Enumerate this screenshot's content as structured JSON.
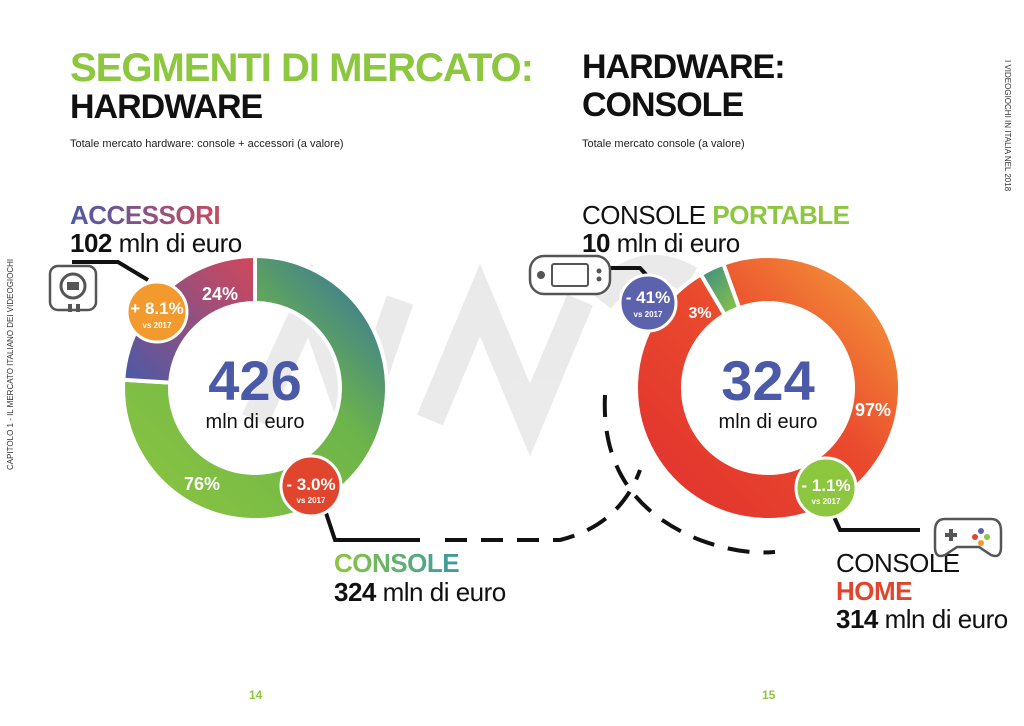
{
  "left": {
    "title_line1": "SEGMENTI DI MERCATO:",
    "title_line2": "HARDWARE",
    "subtitle": "Totale mercato hardware: console + accessori (a valore)",
    "accessori_label": "ACCESSORI",
    "accessori_value_num": "102",
    "accessori_value_unit": " mln di euro",
    "console_label": "CONSOLE",
    "console_value_num": "324",
    "console_value_unit": " mln di euro",
    "center_value": "426",
    "center_unit": "mln di euro",
    "badge_accessori": "+ 8.1%",
    "badge_accessori_sub": "vs 2017",
    "badge_console": "- 3.0%",
    "badge_console_sub": "vs 2017",
    "page_number": "14",
    "side_text": "CAPITOLO 1 - IL MERCATO ITALIANO DEI VIDEOGIOCHI"
  },
  "right": {
    "title_line1": "HARDWARE:",
    "title_line2": "CONSOLE",
    "subtitle": "Totale mercato console (a valore)",
    "portable_label_a": "CONSOLE ",
    "portable_label_b": "PORTABLE",
    "portable_value_num": "10",
    "portable_value_unit": " mln di euro",
    "home_label_a": "CONSOLE",
    "home_label_b": "HOME",
    "home_value_num": "314",
    "home_value_unit": " mln di euro",
    "center_value": "324",
    "center_unit": "mln di euro",
    "badge_portable": "- 41%",
    "badge_portable_sub": "vs 2017",
    "badge_home": "- 1.1%",
    "badge_home_sub": "vs 2017",
    "page_number": "15",
    "side_text": "I VIDEOGIOCHI IN ITALIA NEL 2018"
  },
  "chart_data": [
    {
      "type": "pie",
      "categories": [
        "Console",
        "Accessori"
      ],
      "values": [
        76,
        24
      ],
      "labels": [
        "76%",
        "24%"
      ],
      "total": "426 mln di euro",
      "colors": {
        "console": "#8dc63f",
        "accessori": "#c94b5e"
      }
    },
    {
      "type": "pie",
      "categories": [
        "Console Home",
        "Console Portable"
      ],
      "values": [
        97,
        3
      ],
      "labels": [
        "97%",
        "3%"
      ],
      "total": "324 mln di euro",
      "colors": {
        "home": "#e8392f",
        "portable": "#8dc63f"
      }
    }
  ]
}
